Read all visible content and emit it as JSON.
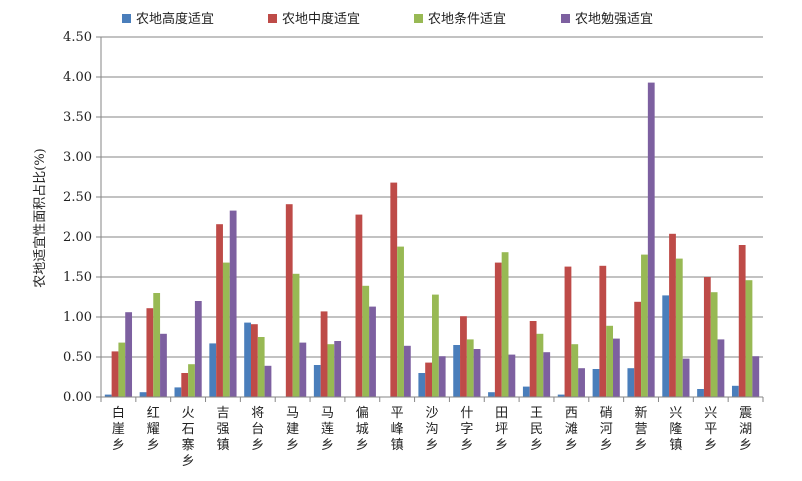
{
  "chart_data": {
    "type": "bar",
    "ylabel": "农地适宜性面积占比(%)",
    "ylim": [
      0,
      4.5
    ],
    "yticks": [
      "0.00",
      "0.50",
      "1.00",
      "1.50",
      "2.00",
      "2.50",
      "3.00",
      "3.50",
      "4.00",
      "4.50"
    ],
    "grid": true,
    "legend_position": "top",
    "categories": [
      "白崖乡",
      "红耀乡",
      "火石寨乡",
      "吉强镇",
      "将台乡",
      "马建乡",
      "马莲乡",
      "偏城乡",
      "平峰镇",
      "沙沟乡",
      "什字乡",
      "田坪乡",
      "王民乡",
      "西滩乡",
      "硝河乡",
      "新营乡",
      "兴隆镇",
      "兴平乡",
      "震湖乡"
    ],
    "series": [
      {
        "name": "农地高度适宜",
        "color": "#4a7ebb",
        "values": [
          0.03,
          0.06,
          0.12,
          0.67,
          0.93,
          0.0,
          0.4,
          0.0,
          0.0,
          0.3,
          0.65,
          0.06,
          0.13,
          0.03,
          0.35,
          0.36,
          1.27,
          0.1,
          0.14
        ]
      },
      {
        "name": "农地中度适宜",
        "color": "#be4b48",
        "values": [
          0.57,
          1.11,
          0.3,
          2.16,
          0.91,
          2.41,
          1.07,
          2.28,
          2.68,
          0.43,
          1.01,
          1.68,
          0.95,
          1.63,
          1.64,
          1.19,
          2.04,
          1.5,
          1.9
        ]
      },
      {
        "name": "农地条件适宜",
        "color": "#98b954",
        "values": [
          0.68,
          1.3,
          0.41,
          1.68,
          0.75,
          1.54,
          0.66,
          1.39,
          1.88,
          1.28,
          0.72,
          1.81,
          0.79,
          0.66,
          0.89,
          1.78,
          1.73,
          1.31,
          1.46
        ]
      },
      {
        "name": "农地勉强适宜",
        "color": "#7d60a0",
        "values": [
          1.06,
          0.79,
          1.2,
          2.33,
          0.39,
          0.68,
          0.7,
          1.13,
          0.64,
          0.51,
          0.6,
          0.53,
          0.56,
          0.36,
          0.73,
          3.93,
          0.48,
          0.72,
          0.51
        ]
      }
    ]
  }
}
